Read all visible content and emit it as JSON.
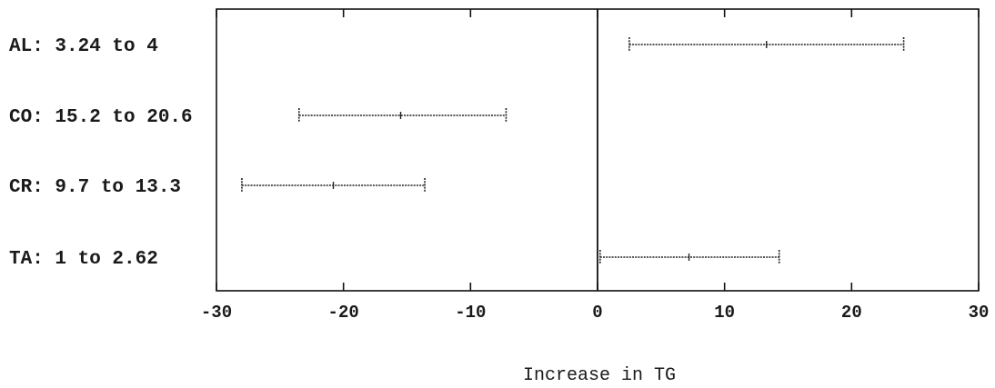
{
  "chart_data": {
    "type": "interval",
    "title": "",
    "xlabel": "Increase in TG",
    "ylabel": "",
    "xlim": [
      -30,
      30
    ],
    "xticks": [
      -30,
      -20,
      -10,
      0,
      10,
      20,
      30
    ],
    "xtick_labels": [
      "-30",
      "-20",
      "-10",
      "0",
      "10",
      "20",
      "30"
    ],
    "reference_line": 0,
    "grid": false,
    "categories": [
      "AL: 3.24 to 4",
      "CO: 15.2 to 20.6",
      "CR: 9.7 to 13.3",
      "TA: 1 to 2.62"
    ],
    "intervals": [
      {
        "low": 2.5,
        "estimate": 13.3,
        "high": 24.1
      },
      {
        "low": -23.5,
        "estimate": -15.5,
        "high": -7.2
      },
      {
        "low": -28.0,
        "estimate": -20.8,
        "high": -13.6
      },
      {
        "low": 0.2,
        "estimate": 7.2,
        "high": 14.3
      }
    ]
  }
}
